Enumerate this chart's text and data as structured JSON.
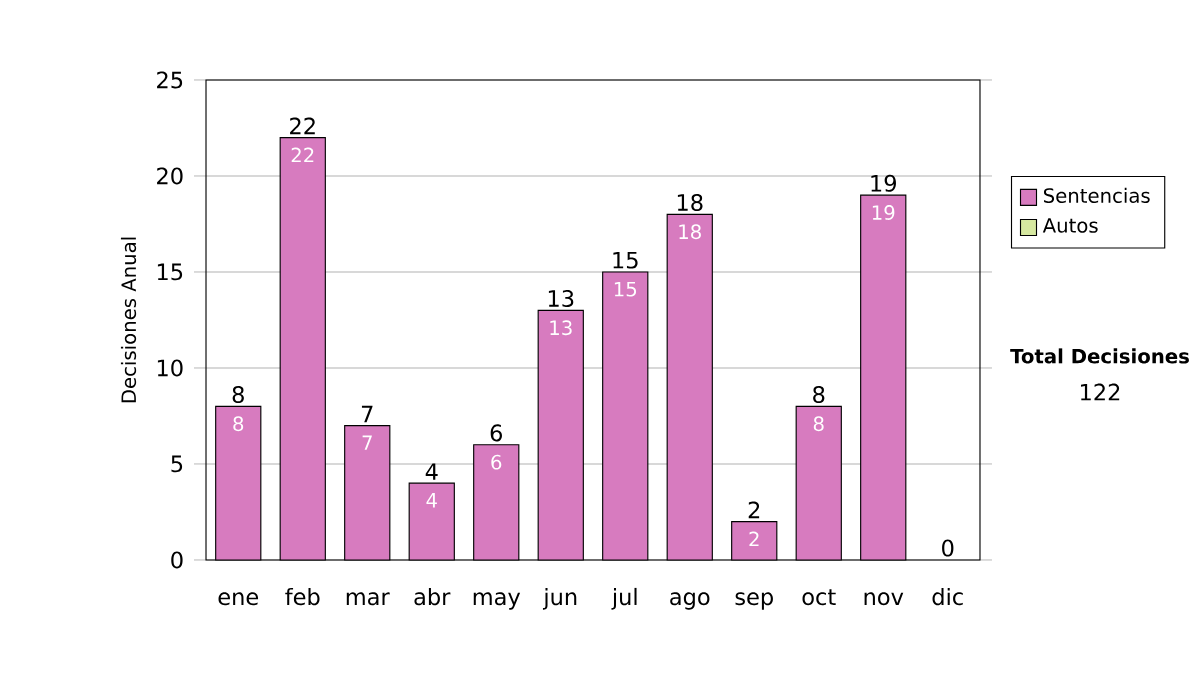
{
  "chart_data": {
    "type": "bar",
    "ylabel": "Decisiones Anual",
    "categories": [
      "ene",
      "feb",
      "mar",
      "abr",
      "may",
      "jun",
      "jul",
      "ago",
      "sep",
      "oct",
      "nov",
      "dic"
    ],
    "series": [
      {
        "name": "Sentencias",
        "color": "#d77bbf",
        "values": [
          8,
          22,
          7,
          4,
          6,
          13,
          15,
          18,
          2,
          8,
          19,
          0
        ],
        "value_labels": [
          "8",
          "22",
          "7",
          "4",
          "6",
          "13",
          "15",
          "18",
          "2",
          "8",
          "19",
          null
        ]
      },
      {
        "name": "Autos",
        "color": "#d6e8a0",
        "values": [
          0,
          0,
          0,
          0,
          0,
          0,
          0,
          0,
          0,
          0,
          0,
          0
        ]
      }
    ],
    "stacked": true,
    "totals": [
      "8",
      "22",
      "7",
      "4",
      "6",
      "13",
      "15",
      "18",
      "2",
      "8",
      "19",
      "0"
    ],
    "ylim": [
      0,
      25
    ],
    "yticks": [
      0,
      5,
      10,
      15,
      20,
      25
    ],
    "grid": "y",
    "legend": "right",
    "annotations": [
      "Total Decisiones",
      "122"
    ]
  }
}
